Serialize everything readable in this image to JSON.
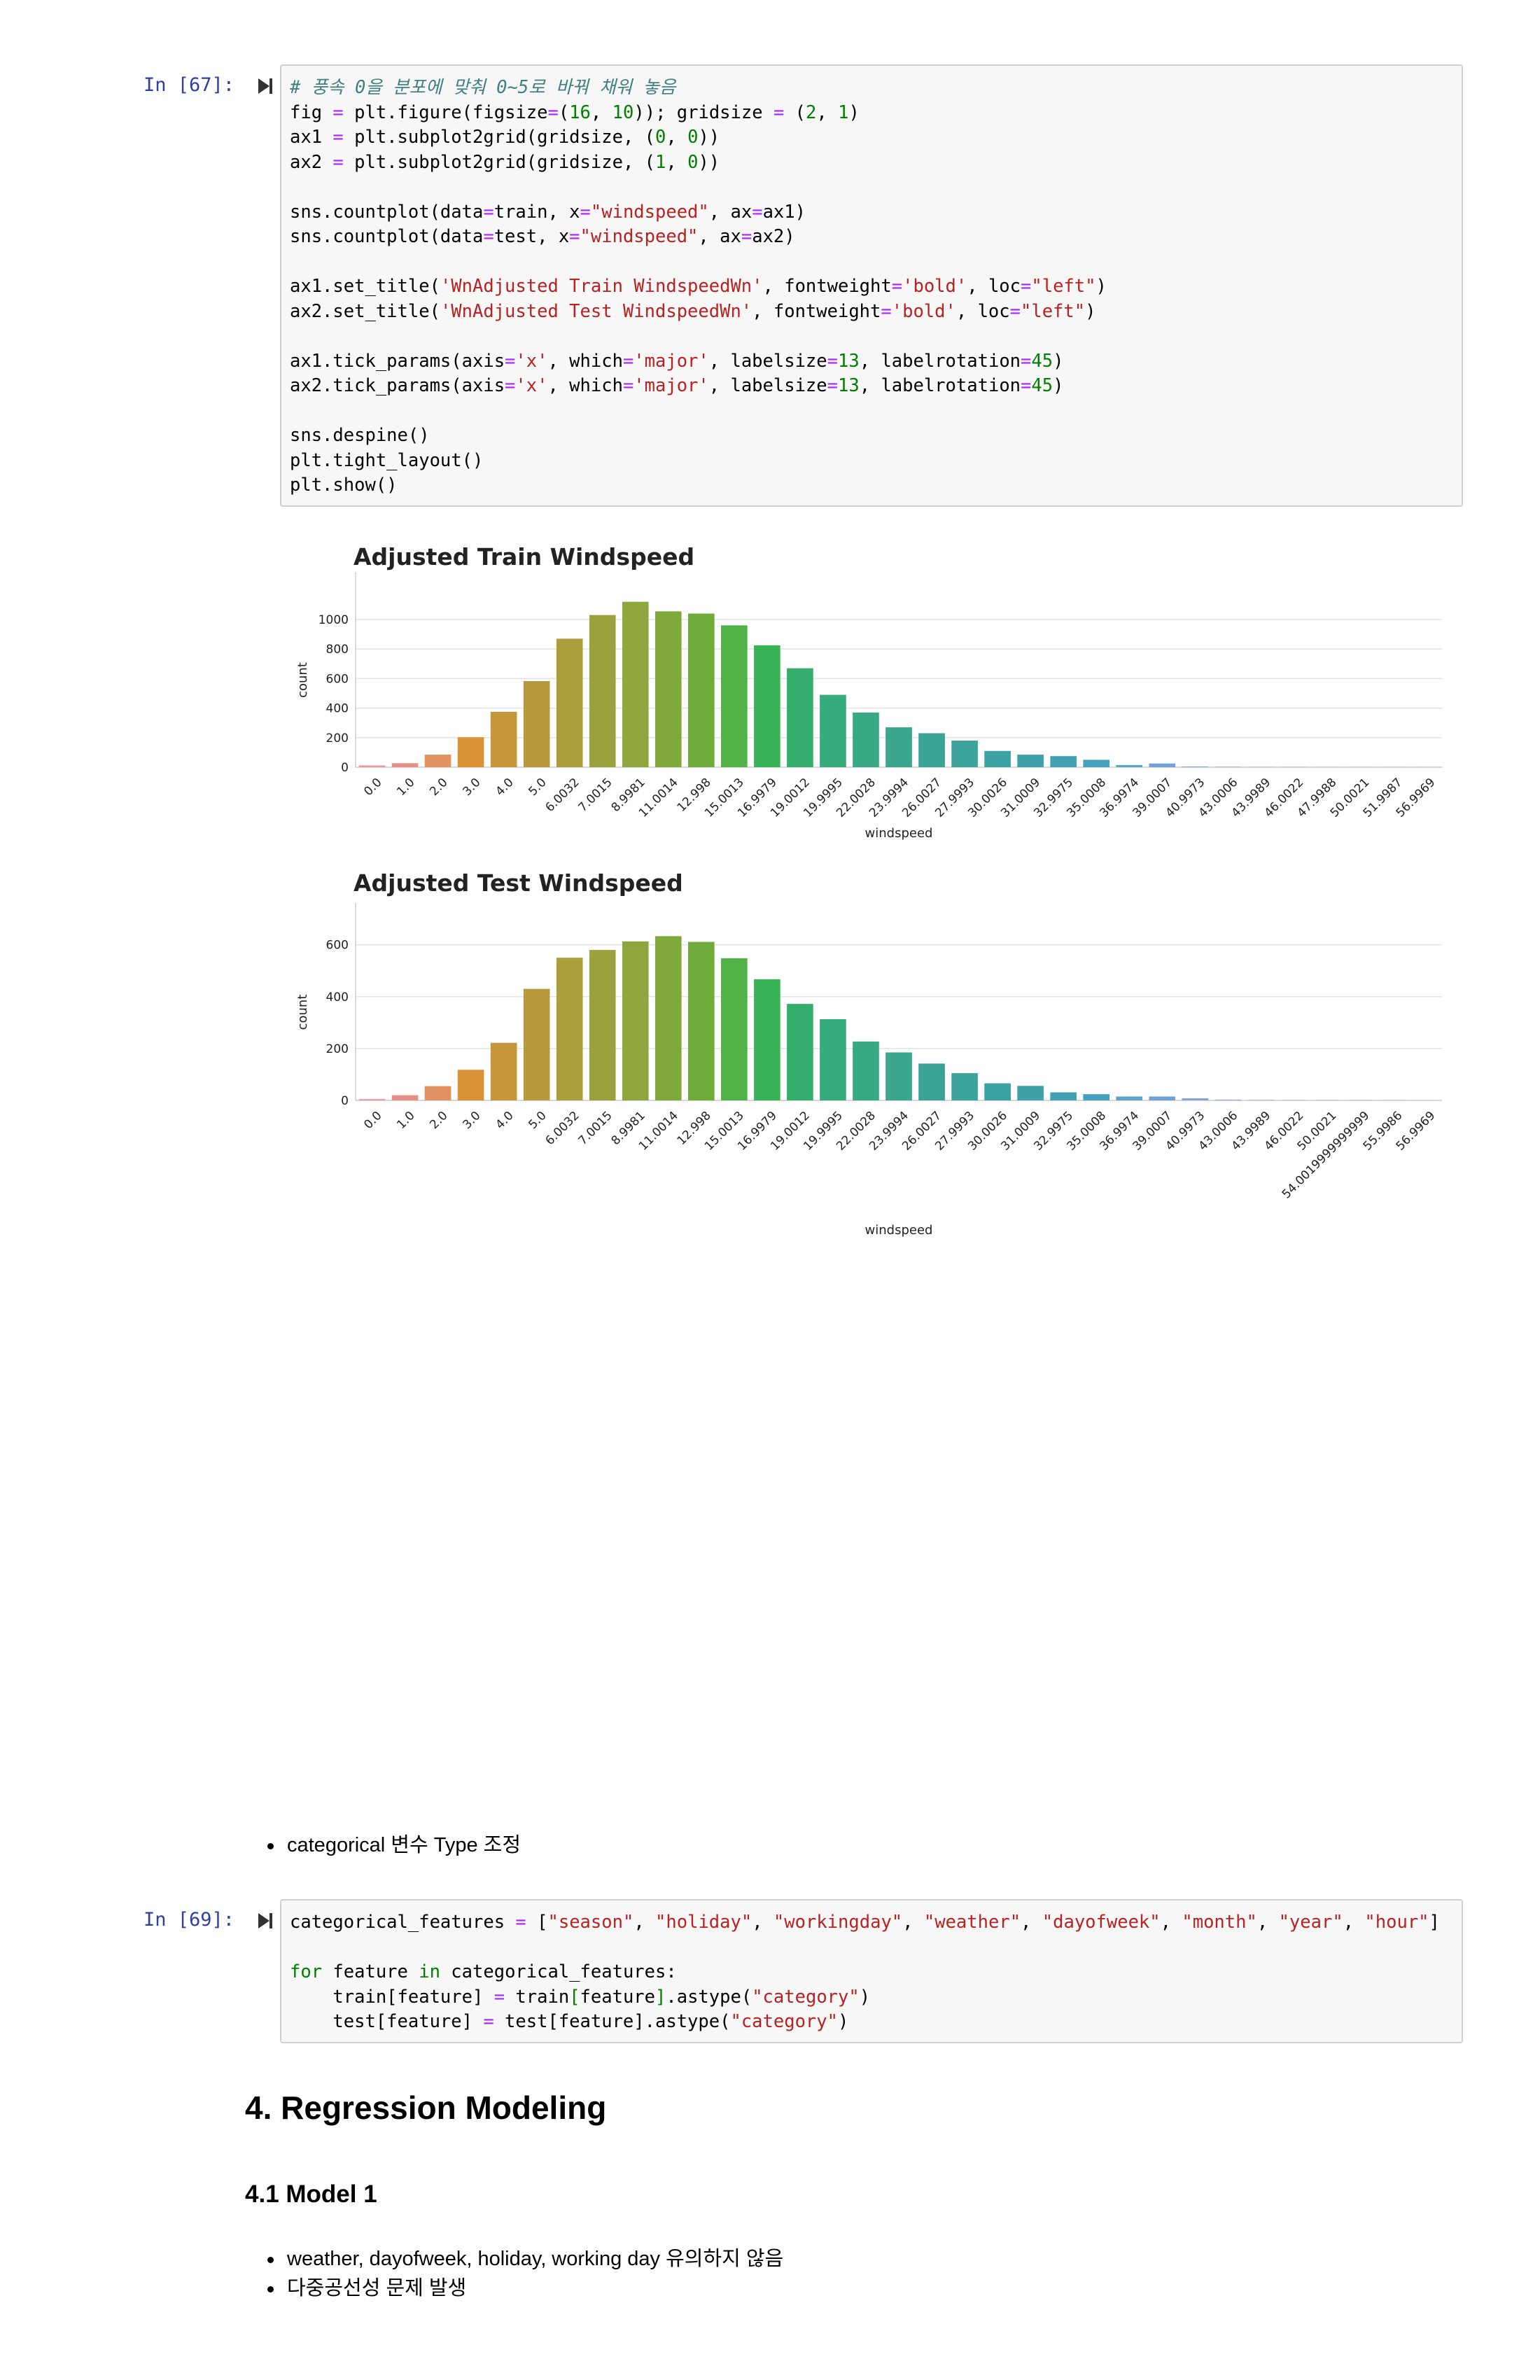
{
  "cells": {
    "c67": {
      "prompt": "In [67]:",
      "lines": [
        [
          {
            "t": "# 풍속 0을 분포에 맞춰 0~5로 바꿔 채워 놓음",
            "c": "cm"
          }
        ],
        [
          {
            "t": "fig "
          },
          {
            "t": "=",
            "c": "op"
          },
          {
            "t": " plt.figure(figsize"
          },
          {
            "t": "=",
            "c": "op"
          },
          {
            "t": "("
          },
          {
            "t": "16",
            "c": "nu"
          },
          {
            "t": ", "
          },
          {
            "t": "10",
            "c": "nu"
          },
          {
            "t": ")); gridsize "
          },
          {
            "t": "=",
            "c": "op"
          },
          {
            "t": " ("
          },
          {
            "t": "2",
            "c": "nu"
          },
          {
            "t": ", "
          },
          {
            "t": "1",
            "c": "nu"
          },
          {
            "t": ")"
          }
        ],
        [
          {
            "t": "ax1 "
          },
          {
            "t": "=",
            "c": "op"
          },
          {
            "t": " plt.subplot2grid(gridsize, ("
          },
          {
            "t": "0",
            "c": "nu"
          },
          {
            "t": ", "
          },
          {
            "t": "0",
            "c": "nu"
          },
          {
            "t": "))"
          }
        ],
        [
          {
            "t": "ax2 "
          },
          {
            "t": "=",
            "c": "op"
          },
          {
            "t": " plt.subplot2grid(gridsize, ("
          },
          {
            "t": "1",
            "c": "nu"
          },
          {
            "t": ", "
          },
          {
            "t": "0",
            "c": "nu"
          },
          {
            "t": "))"
          }
        ],
        [],
        [
          {
            "t": "sns.countplot(data"
          },
          {
            "t": "=",
            "c": "op"
          },
          {
            "t": "train, x"
          },
          {
            "t": "=",
            "c": "op"
          },
          {
            "t": "\"windspeed\"",
            "c": "st"
          },
          {
            "t": ", ax"
          },
          {
            "t": "=",
            "c": "op"
          },
          {
            "t": "ax1)"
          }
        ],
        [
          {
            "t": "sns.countplot(data"
          },
          {
            "t": "=",
            "c": "op"
          },
          {
            "t": "test, x"
          },
          {
            "t": "=",
            "c": "op"
          },
          {
            "t": "\"windspeed\"",
            "c": "st"
          },
          {
            "t": ", ax"
          },
          {
            "t": "=",
            "c": "op"
          },
          {
            "t": "ax2)"
          }
        ],
        [],
        [
          {
            "t": "ax1.set_title("
          },
          {
            "t": "'WnAdjusted Train WindspeedWn'",
            "c": "st"
          },
          {
            "t": ", fontweight"
          },
          {
            "t": "=",
            "c": "op"
          },
          {
            "t": "'bold'",
            "c": "st"
          },
          {
            "t": ", loc"
          },
          {
            "t": "=",
            "c": "op"
          },
          {
            "t": "\"left\"",
            "c": "st"
          },
          {
            "t": ")"
          }
        ],
        [
          {
            "t": "ax2.set_title("
          },
          {
            "t": "'WnAdjusted Test WindspeedWn'",
            "c": "st"
          },
          {
            "t": ", fontweight"
          },
          {
            "t": "=",
            "c": "op"
          },
          {
            "t": "'bold'",
            "c": "st"
          },
          {
            "t": ", loc"
          },
          {
            "t": "=",
            "c": "op"
          },
          {
            "t": "\"left\"",
            "c": "st"
          },
          {
            "t": ")"
          }
        ],
        [],
        [
          {
            "t": "ax1.tick_params(axis"
          },
          {
            "t": "=",
            "c": "op"
          },
          {
            "t": "'x'",
            "c": "st"
          },
          {
            "t": ", which"
          },
          {
            "t": "=",
            "c": "op"
          },
          {
            "t": "'major'",
            "c": "st"
          },
          {
            "t": ", labelsize"
          },
          {
            "t": "=",
            "c": "op"
          },
          {
            "t": "13",
            "c": "nu"
          },
          {
            "t": ", labelrotation"
          },
          {
            "t": "=",
            "c": "op"
          },
          {
            "t": "45",
            "c": "nu"
          },
          {
            "t": ")"
          }
        ],
        [
          {
            "t": "ax2.tick_params(axis"
          },
          {
            "t": "=",
            "c": "op"
          },
          {
            "t": "'x'",
            "c": "st"
          },
          {
            "t": ", which"
          },
          {
            "t": "=",
            "c": "op"
          },
          {
            "t": "'major'",
            "c": "st"
          },
          {
            "t": ", labelsize"
          },
          {
            "t": "=",
            "c": "op"
          },
          {
            "t": "13",
            "c": "nu"
          },
          {
            "t": ", labelrotation"
          },
          {
            "t": "=",
            "c": "op"
          },
          {
            "t": "45",
            "c": "nu"
          },
          {
            "t": ")"
          }
        ],
        [],
        [
          {
            "t": "sns.despine()"
          }
        ],
        [
          {
            "t": "plt.tight_layout()"
          }
        ],
        [
          {
            "t": "plt.show()"
          }
        ]
      ]
    },
    "c69": {
      "prompt": "In [69]:",
      "lines": [
        [
          {
            "t": "categorical_features "
          },
          {
            "t": "=",
            "c": "op"
          },
          {
            "t": " ["
          },
          {
            "t": "\"season\"",
            "c": "st"
          },
          {
            "t": ", "
          },
          {
            "t": "\"holiday\"",
            "c": "st"
          },
          {
            "t": ", "
          },
          {
            "t": "\"workingday\"",
            "c": "st"
          },
          {
            "t": ", "
          },
          {
            "t": "\"weather\"",
            "c": "st"
          },
          {
            "t": ", "
          },
          {
            "t": "\"dayofweek\"",
            "c": "st"
          },
          {
            "t": ", "
          },
          {
            "t": "\"month\"",
            "c": "st"
          },
          {
            "t": ", "
          },
          {
            "t": "\"year\"",
            "c": "st"
          },
          {
            "t": ", "
          },
          {
            "t": "\"hour\"",
            "c": "st"
          },
          {
            "t": "]"
          }
        ],
        [],
        [
          {
            "t": "for",
            "c": "kw"
          },
          {
            "t": " feature "
          },
          {
            "t": "in",
            "c": "kw"
          },
          {
            "t": " categorical_features:"
          }
        ],
        [
          {
            "t": "    train[feature] "
          },
          {
            "t": "=",
            "c": "op"
          },
          {
            "t": " train"
          },
          {
            "t": "[",
            "c": "kw"
          },
          {
            "t": "feature"
          },
          {
            "t": "]",
            "c": "kw"
          },
          {
            "t": ".astype("
          },
          {
            "t": "\"category\"",
            "c": "st"
          },
          {
            "t": ")"
          }
        ],
        [
          {
            "t": "    test[feature] "
          },
          {
            "t": "=",
            "c": "op"
          },
          {
            "t": " test[feature].astype("
          },
          {
            "t": "\"category\"",
            "c": "st"
          },
          {
            "t": ")"
          }
        ]
      ]
    }
  },
  "chart_data": [
    {
      "type": "bar",
      "title": "Adjusted Train Windspeed",
      "xlabel": "windspeed",
      "ylabel": "count",
      "ylim": [
        0,
        1180
      ],
      "yticks": [
        0,
        200,
        400,
        600,
        800,
        1000
      ],
      "categories": [
        "0.0",
        "1.0",
        "2.0",
        "3.0",
        "4.0",
        "5.0",
        "6.0032",
        "7.0015",
        "8.9981",
        "11.0014",
        "12.998",
        "15.0013",
        "16.9979",
        "19.0012",
        "19.9995",
        "22.0028",
        "23.9994",
        "26.0027",
        "27.9993",
        "30.0026",
        "31.0009",
        "32.9975",
        "35.0008",
        "36.9974",
        "39.0007",
        "40.9973",
        "43.0006",
        "43.9989",
        "46.0022",
        "47.9988",
        "50.0021",
        "51.9987",
        "56.9969"
      ],
      "values": [
        12,
        27,
        85,
        203,
        375,
        583,
        870,
        1030,
        1120,
        1055,
        1040,
        960,
        825,
        670,
        490,
        370,
        270,
        230,
        180,
        110,
        85,
        75,
        50,
        15,
        25,
        5,
        3,
        2,
        2,
        1,
        1,
        1,
        1
      ],
      "colors": [
        "#ea96a3",
        "#e68f86",
        "#e19262",
        "#d99236",
        "#c6963a",
        "#b79a3c",
        "#aa9e3d",
        "#9ba13d",
        "#8ea63b",
        "#80a93c",
        "#6fac3c",
        "#50b144",
        "#39b357",
        "#35ae6d",
        "#36ab7b",
        "#38a885",
        "#39a68d",
        "#3ba395",
        "#3ca39d",
        "#3da2a3",
        "#3fa2aa",
        "#41a1b3",
        "#44a1bd",
        "#5ea2c8",
        "#70a2d3",
        "#84a2dd",
        "#98a4e5",
        "#aca5e7",
        "#bba4e8",
        "#c7a3e7",
        "#d0a1e5",
        "#daa0e2",
        "#e19fde"
      ]
    },
    {
      "type": "bar",
      "title": "Adjusted Test Windspeed",
      "xlabel": "windspeed",
      "ylabel": "count",
      "ylim": [
        0,
        680
      ],
      "yticks": [
        0,
        200,
        400,
        600
      ],
      "categories": [
        "0.0",
        "1.0",
        "2.0",
        "3.0",
        "4.0",
        "5.0",
        "6.0032",
        "7.0015",
        "8.9981",
        "11.0014",
        "12.998",
        "15.0013",
        "16.9979",
        "19.0012",
        "19.9995",
        "22.0028",
        "23.9994",
        "26.0027",
        "27.9993",
        "30.0026",
        "31.0009",
        "32.9975",
        "35.0008",
        "36.9974",
        "39.0007",
        "40.9973",
        "43.0006",
        "43.9989",
        "46.0022",
        "50.0021",
        "54.0019999999999",
        "55.9986",
        "56.9969"
      ],
      "values": [
        5,
        20,
        55,
        118,
        222,
        430,
        550,
        580,
        613,
        633,
        611,
        548,
        467,
        372,
        313,
        227,
        185,
        142,
        105,
        66,
        56,
        31,
        24,
        15,
        15,
        8,
        3,
        2,
        1,
        1,
        1,
        1,
        1
      ],
      "colors": [
        "#ea96a3",
        "#e68f86",
        "#e19262",
        "#d99236",
        "#c6963a",
        "#b79a3c",
        "#aa9e3d",
        "#9ba13d",
        "#8ea63b",
        "#80a93c",
        "#6fac3c",
        "#50b144",
        "#39b357",
        "#35ae6d",
        "#36ab7b",
        "#38a885",
        "#39a68d",
        "#3ba395",
        "#3ca39d",
        "#3da2a3",
        "#3fa2aa",
        "#41a1b3",
        "#44a1bd",
        "#5ea2c8",
        "#70a2d3",
        "#84a2dd",
        "#98a4e5",
        "#aca5e7",
        "#bba4e8",
        "#c7a3e7",
        "#d0a1e5",
        "#daa0e2",
        "#e19fde"
      ]
    }
  ],
  "bullets1": [
    "categorical 변수 Type 조정"
  ],
  "headings": {
    "h4": "4. Regression Modeling",
    "h41": "4.1 Model 1"
  },
  "bullets2": [
    "weather, dayofweek, holiday, working day 유의하지 않음",
    "다중공선성 문제 발생"
  ]
}
